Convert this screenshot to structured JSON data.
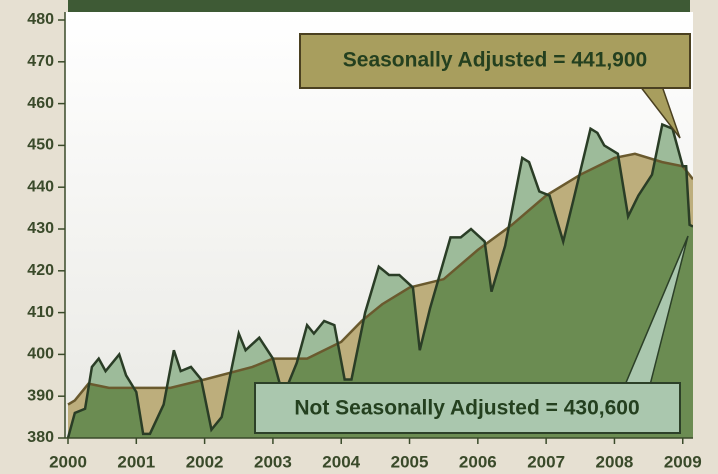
{
  "chart_data": {
    "type": "area",
    "annotations": [
      "Seasonally Adjusted = 441,900",
      "Not Seasonally Adjusted = 430,600"
    ],
    "xlim": [
      2000,
      2009.15
    ],
    "xticks": [
      2000,
      2001,
      2002,
      2003,
      2004,
      2005,
      2006,
      2007,
      2008,
      2009
    ],
    "ylim": [
      380,
      480
    ],
    "yticks": [
      380,
      390,
      400,
      410,
      420,
      430,
      440,
      450,
      460,
      470,
      480
    ],
    "series": [
      {
        "color": "#bdae7c",
        "x": [
          2000,
          2000.1,
          2000.3,
          2000.6,
          2001,
          2001.5,
          2002,
          2002.7,
          2003,
          2003.5,
          2004,
          2004.3,
          2004.6,
          2005,
          2005.5,
          2006,
          2006.5,
          2007,
          2007.5,
          2008,
          2008.3,
          2008.7,
          2009,
          2009.15
        ],
        "values": [
          388,
          389,
          393,
          392,
          392,
          392,
          394,
          397,
          399,
          399,
          403,
          408,
          412,
          416,
          418,
          425,
          431,
          438,
          443,
          447,
          448,
          446,
          445,
          441.9
        ]
      },
      {
        "color": "#6b8c52",
        "x": [
          2000,
          2000.1,
          2000.25,
          2000.35,
          2000.45,
          2000.55,
          2000.75,
          2000.85,
          2001,
          2001.1,
          2001.2,
          2001.4,
          2001.55,
          2001.65,
          2001.8,
          2001.95,
          2002.1,
          2002.25,
          2002.5,
          2002.6,
          2002.8,
          2003,
          2003.15,
          2003.35,
          2003.5,
          2003.6,
          2003.75,
          2003.9,
          2004.05,
          2004.15,
          2004.35,
          2004.55,
          2004.7,
          2004.85,
          2005.05,
          2005.15,
          2005.3,
          2005.6,
          2005.75,
          2005.9,
          2006.1,
          2006.2,
          2006.4,
          2006.65,
          2006.75,
          2006.9,
          2007.05,
          2007.25,
          2007.4,
          2007.65,
          2007.75,
          2007.85,
          2008.05,
          2008.2,
          2008.35,
          2008.55,
          2008.7,
          2008.85,
          2009,
          2009.05,
          2009.1,
          2009.15
        ],
        "values": [
          380,
          386,
          387,
          397,
          399,
          396,
          400,
          395,
          391,
          381,
          381,
          388,
          401,
          396,
          397,
          394,
          382,
          385,
          405,
          401,
          404,
          399,
          390,
          398,
          407,
          405,
          408,
          407,
          394,
          394,
          410,
          421,
          419,
          419,
          416,
          401,
          411,
          428,
          428,
          430,
          427,
          415,
          426,
          447,
          446,
          439,
          438,
          427,
          437,
          454,
          453,
          450,
          448,
          433,
          438,
          443,
          455,
          454,
          445,
          445,
          431,
          430.6
        ]
      }
    ]
  }
}
